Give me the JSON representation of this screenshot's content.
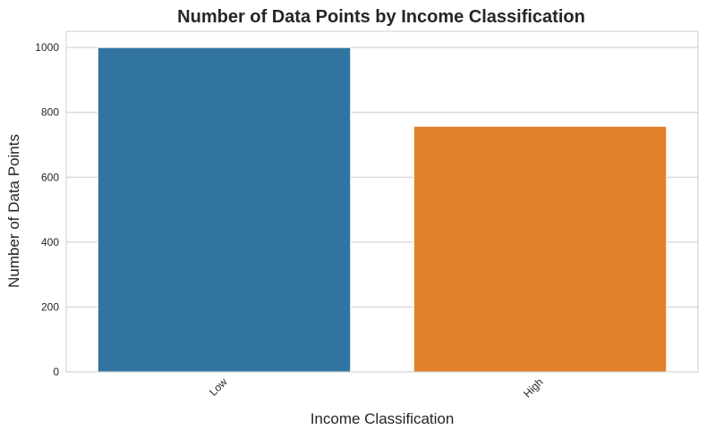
{
  "chart_data": {
    "type": "bar",
    "title": "Number of Data Points by Income Classification",
    "xlabel": "Income Classification",
    "ylabel": "Number of Data Points",
    "categories": [
      "Low",
      "High"
    ],
    "values": [
      1000,
      757
    ],
    "colors": [
      "#3274a1",
      "#e1812c"
    ],
    "ylim": [
      0,
      1050
    ],
    "yticks": [
      0,
      200,
      400,
      600,
      800,
      1000
    ],
    "grid": true,
    "xtick_rotation": -45
  }
}
